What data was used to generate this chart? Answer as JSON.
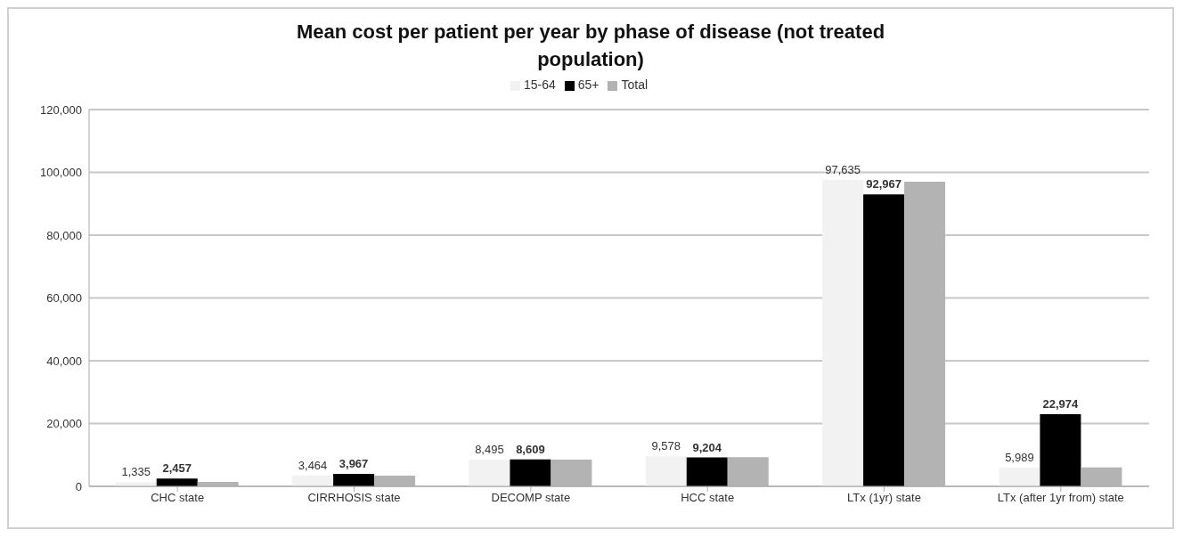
{
  "chart_data": {
    "type": "bar",
    "title": "Mean cost per patient per year by phase of disease (not treated population)",
    "categories": [
      "CHC state",
      "CIRRHOSIS state",
      "DECOMP state",
      "HCC state",
      "LTx (1yr) state",
      "LTx (after 1yr from) state"
    ],
    "series": [
      {
        "name": "15-64",
        "color": "#f2f2f2",
        "values": [
          1335,
          3464,
          8495,
          9578,
          97635,
          5989
        ],
        "value_labels": [
          "1,335",
          "3,464",
          "8,495",
          "9,578",
          "97,635",
          "5,989"
        ]
      },
      {
        "name": "65+",
        "color": "#000000",
        "values": [
          2457,
          3967,
          8609,
          9204,
          92967,
          22974
        ],
        "value_labels": [
          "2,457",
          "3,967",
          "8,609",
          "9,204",
          "92,967",
          "22,974"
        ]
      },
      {
        "name": "Total",
        "color": "#b3b3b3",
        "values": [
          1400,
          3400,
          8500,
          9300,
          97000,
          6000
        ]
      }
    ],
    "ylim": [
      0,
      120000
    ],
    "yticks": [
      0,
      {
        "value": 20000,
        "label": "20,000"
      },
      {
        "value": 40000,
        "label": "40,000"
      },
      {
        "value": 60000,
        "label": "60,000"
      },
      {
        "value": 80000,
        "label": "80,000"
      },
      {
        "value": 100000,
        "label": "100,000"
      },
      {
        "value": 120000,
        "label": "120,000"
      }
    ],
    "grid": "y",
    "legend": "top"
  }
}
